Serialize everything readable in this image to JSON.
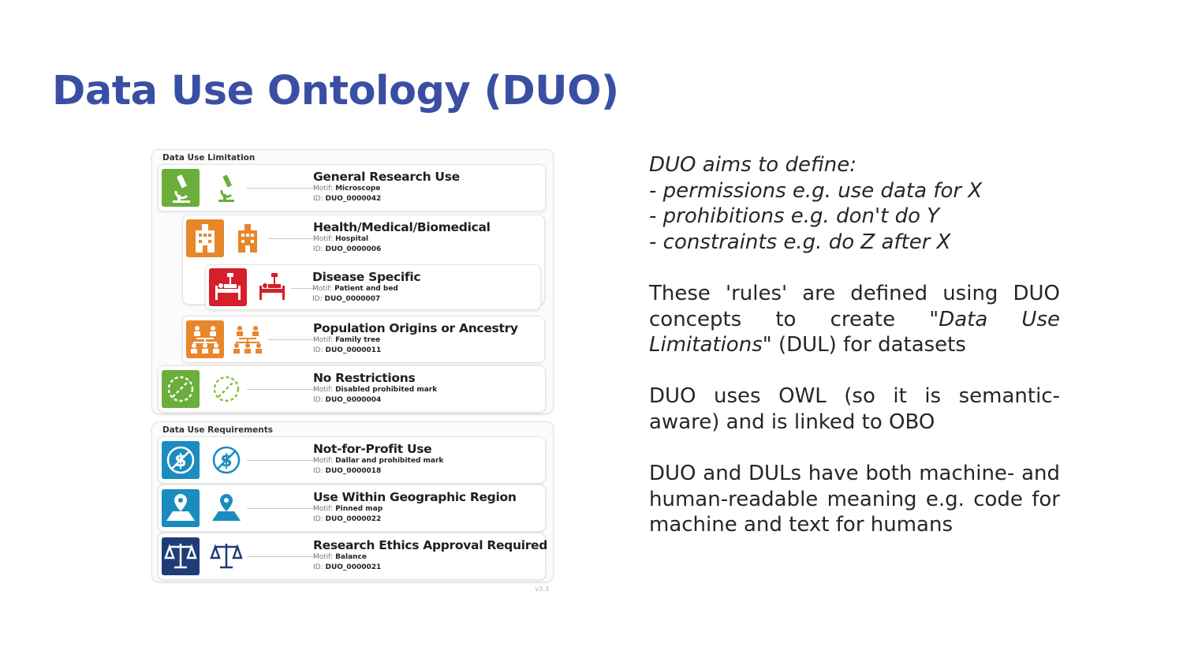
{
  "title": "Data Use Ontology (DUO)",
  "figure": {
    "limitation_title": "Data Use Limitation",
    "requirements_title": "Data Use Requirements",
    "motif_label": "Motif:",
    "id_label": "ID:",
    "version": "v2.3",
    "colors": {
      "green": "#6aae3b",
      "orange": "#e8862a",
      "red": "#d51f2b",
      "teal": "#1a8cc0",
      "navy": "#1e3d77"
    },
    "limitations": [
      {
        "name": "General Research Use",
        "motif": "Microscope",
        "id": "DUO_0000042",
        "icon": "microscope-icon"
      },
      {
        "name": "Health/Medical/Biomedical",
        "motif": "Hospital",
        "id": "DUO_0000006",
        "icon": "hospital-icon"
      },
      {
        "name": "Disease Specific",
        "motif": "Patient and bed",
        "id": "DUO_0000007",
        "icon": "patient-bed-icon"
      },
      {
        "name": "Population Origins or Ancestry",
        "motif": "Family tree",
        "id": "DUO_0000011",
        "icon": "family-tree-icon"
      },
      {
        "name": "No Restrictions",
        "motif": "Disabled prohibited mark",
        "id": "DUO_0000004",
        "icon": "disabled-prohibited-icon"
      }
    ],
    "requirements": [
      {
        "name": "Not-for-Profit Use",
        "motif": "Dallar and prohibited mark",
        "id": "DUO_0000018",
        "icon": "dollar-prohibited-icon"
      },
      {
        "name": "Use Within Geographic Region",
        "motif": "Pinned map",
        "id": "DUO_0000022",
        "icon": "pinned-map-icon"
      },
      {
        "name": "Research Ethics Approval Required",
        "motif": "Balance",
        "id": "DUO_0000021",
        "icon": "balance-icon"
      }
    ]
  },
  "text": {
    "intro": "DUO aims to define:",
    "bullets": [
      "- permissions e.g. use data for X",
      "- prohibitions e.g. don't do Y",
      "- constraints e.g. do Z after X"
    ],
    "p1_a": "These 'rules' are defined using DUO concepts to create \"",
    "p1_em": "Data Use Limitations",
    "p1_b": "\" (DUL) for datasets",
    "p2": "DUO uses OWL (so it is semantic-aware) and is linked to OBO",
    "p3": "DUO and DULs have both machine- and human-readable meaning e.g. code for machine and text for humans"
  }
}
